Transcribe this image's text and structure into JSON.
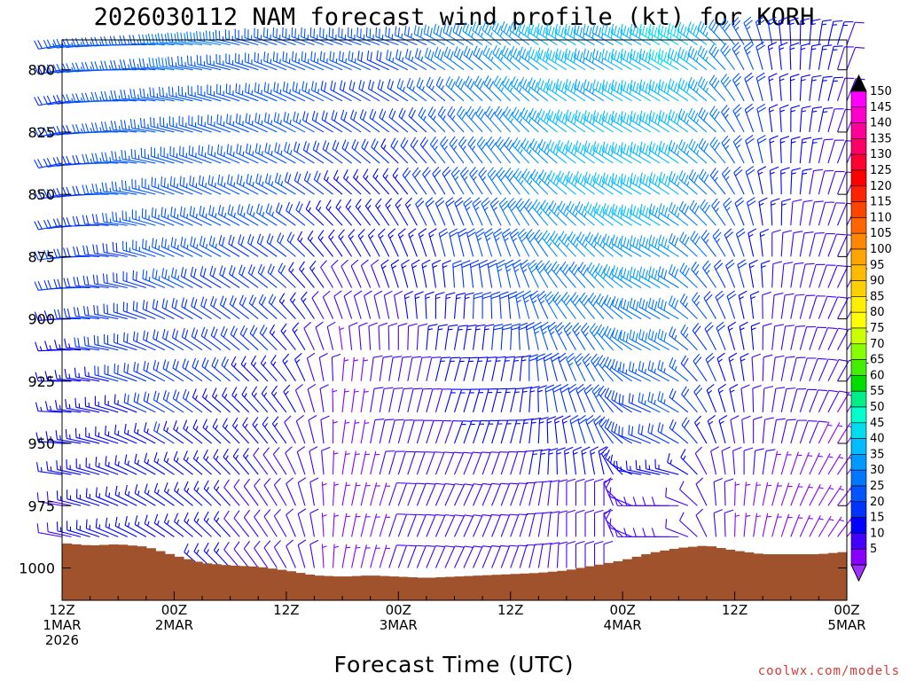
{
  "colors": {
    "terrain": "#a0522d",
    "credit": "#d43a3a"
  },
  "chart_data": {
    "type": "wind-barb-time-height",
    "title": "2026030112 NAM forecast wind profile (kt) for KORH",
    "xlabel": "Forecast Time (UTC)",
    "credit": "coolwx.com/models",
    "y_axis": {
      "unit": "hPa",
      "range": [
        1013,
        788
      ],
      "ticks": [
        "800",
        "825",
        "850",
        "875",
        "900",
        "925",
        "950",
        "975",
        "1000"
      ]
    },
    "x_axis": {
      "unit": "forecast hour",
      "range": [
        0,
        84
      ],
      "step_hours": 1,
      "ticks": [
        {
          "hour": 0,
          "lines": [
            "12Z",
            "1MAR",
            "2026"
          ]
        },
        {
          "hour": 12,
          "lines": [
            "00Z",
            "2MAR"
          ]
        },
        {
          "hour": 24,
          "lines": [
            "12Z"
          ]
        },
        {
          "hour": 36,
          "lines": [
            "00Z",
            "3MAR"
          ]
        },
        {
          "hour": 48,
          "lines": [
            "12Z"
          ]
        },
        {
          "hour": 60,
          "lines": [
            "00Z",
            "4MAR"
          ]
        },
        {
          "hour": 72,
          "lines": [
            "12Z"
          ]
        },
        {
          "hour": 84,
          "lines": [
            "00Z",
            "5MAR"
          ]
        }
      ]
    },
    "barb_levels_hpa": [
      790,
      800,
      812.5,
      825,
      837.5,
      850,
      862.5,
      875,
      887.5,
      900,
      912.5,
      925,
      937.5,
      950,
      962.5,
      975,
      987.5,
      1000,
      1010
    ],
    "surface_pressure_hpa": {
      "hours": [
        0,
        3,
        6,
        9,
        12,
        15,
        18,
        21,
        24,
        27,
        30,
        33,
        36,
        39,
        42,
        45,
        48,
        51,
        54,
        57,
        60,
        63,
        66,
        69,
        72,
        75,
        78,
        81,
        84
      ],
      "values": [
        990,
        991,
        990.5,
        991.5,
        995,
        998,
        999,
        999.5,
        1001,
        1003,
        1003.5,
        1003,
        1003.5,
        1004,
        1003.5,
        1003,
        1002.5,
        1002,
        1001,
        999,
        997,
        994,
        992,
        991,
        993,
        994.5,
        994.5,
        994.5,
        993.5
      ]
    },
    "wind_key_frames": [
      {
        "hour": 0,
        "levels": [
          [
            790,
            260,
            22
          ],
          [
            850,
            258,
            20
          ],
          [
            925,
            270,
            15
          ],
          [
            975,
            280,
            12
          ]
        ]
      },
      {
        "hour": 12,
        "levels": [
          [
            790,
            275,
            28
          ],
          [
            850,
            290,
            26
          ],
          [
            925,
            300,
            20
          ],
          [
            975,
            305,
            15
          ]
        ]
      },
      {
        "hour": 24,
        "levels": [
          [
            790,
            290,
            27
          ],
          [
            850,
            300,
            24
          ],
          [
            925,
            320,
            16
          ],
          [
            975,
            330,
            10
          ]
        ]
      },
      {
        "hour": 30,
        "levels": [
          [
            790,
            290,
            25
          ],
          [
            850,
            310,
            17
          ],
          [
            900,
            340,
            8
          ],
          [
            925,
            5,
            6
          ],
          [
            975,
            10,
            6
          ]
        ]
      },
      {
        "hour": 36,
        "levels": [
          [
            790,
            290,
            23
          ],
          [
            850,
            320,
            16
          ],
          [
            900,
            350,
            12
          ],
          [
            925,
            10,
            10
          ],
          [
            975,
            20,
            8
          ]
        ]
      },
      {
        "hour": 42,
        "levels": [
          [
            790,
            300,
            30
          ],
          [
            850,
            330,
            22
          ],
          [
            900,
            5,
            16
          ],
          [
            925,
            15,
            14
          ],
          [
            975,
            25,
            11
          ]
        ]
      },
      {
        "hour": 48,
        "levels": [
          [
            790,
            310,
            35
          ],
          [
            850,
            325,
            30
          ],
          [
            900,
            355,
            22
          ],
          [
            925,
            10,
            16
          ],
          [
            975,
            20,
            10
          ]
        ]
      },
      {
        "hour": 54,
        "levels": [
          [
            790,
            300,
            40
          ],
          [
            850,
            310,
            38
          ],
          [
            900,
            325,
            30
          ],
          [
            925,
            340,
            22
          ],
          [
            975,
            0,
            12
          ]
        ]
      },
      {
        "hour": 58,
        "levels": [
          [
            790,
            300,
            35
          ],
          [
            850,
            305,
            40
          ],
          [
            900,
            320,
            30
          ],
          [
            950,
            335,
            20
          ],
          [
            975,
            0,
            10
          ]
        ]
      },
      {
        "hour": 62,
        "levels": [
          [
            790,
            300,
            40
          ],
          [
            850,
            300,
            42
          ],
          [
            900,
            300,
            32
          ],
          [
            950,
            290,
            18
          ],
          [
            975,
            270,
            10
          ]
        ]
      },
      {
        "hour": 66,
        "levels": [
          [
            790,
            300,
            45
          ],
          [
            850,
            305,
            38
          ],
          [
            900,
            300,
            30
          ],
          [
            950,
            300,
            22
          ],
          [
            975,
            270,
            10
          ]
        ]
      },
      {
        "hour": 70,
        "levels": [
          [
            790,
            310,
            35
          ],
          [
            850,
            315,
            30
          ],
          [
            900,
            330,
            22
          ],
          [
            950,
            340,
            14
          ],
          [
            975,
            355,
            8
          ]
        ]
      },
      {
        "hour": 76,
        "levels": [
          [
            790,
            350,
            18
          ],
          [
            850,
            355,
            14
          ],
          [
            900,
            5,
            10
          ],
          [
            950,
            10,
            8
          ],
          [
            975,
            15,
            6
          ]
        ]
      },
      {
        "hour": 84,
        "levels": [
          [
            790,
            20,
            12
          ],
          [
            850,
            25,
            10
          ],
          [
            900,
            30,
            8
          ],
          [
            950,
            35,
            7
          ],
          [
            975,
            40,
            6
          ]
        ]
      }
    ],
    "colorbar": {
      "labels": [
        "150",
        "145",
        "140",
        "135",
        "130",
        "125",
        "120",
        "115",
        "110",
        "105",
        "100",
        "95",
        "90",
        "85",
        "80",
        "75",
        "70",
        "65",
        "60",
        "55",
        "50",
        "45",
        "40",
        "35",
        "30",
        "25",
        "20",
        "15",
        "10",
        "5"
      ],
      "colors": [
        "#ff00ff",
        "#ff00cc",
        "#ff0099",
        "#ff0066",
        "#ff0033",
        "#ff0000",
        "#ff2200",
        "#ff4400",
        "#ff6600",
        "#ff8800",
        "#ffa500",
        "#ffbb00",
        "#ffd000",
        "#ffee00",
        "#ffff00",
        "#ccff00",
        "#88ff00",
        "#44ee00",
        "#00dd00",
        "#00ee88",
        "#00ffcc",
        "#00ddee",
        "#00bbff",
        "#0099ff",
        "#0077ff",
        "#0055ff",
        "#0033ff",
        "#0000ff",
        "#4400ff",
        "#8800ff"
      ],
      "top_arrow_color": "#000000",
      "bottom_arrow_color": "#a030ff"
    }
  }
}
